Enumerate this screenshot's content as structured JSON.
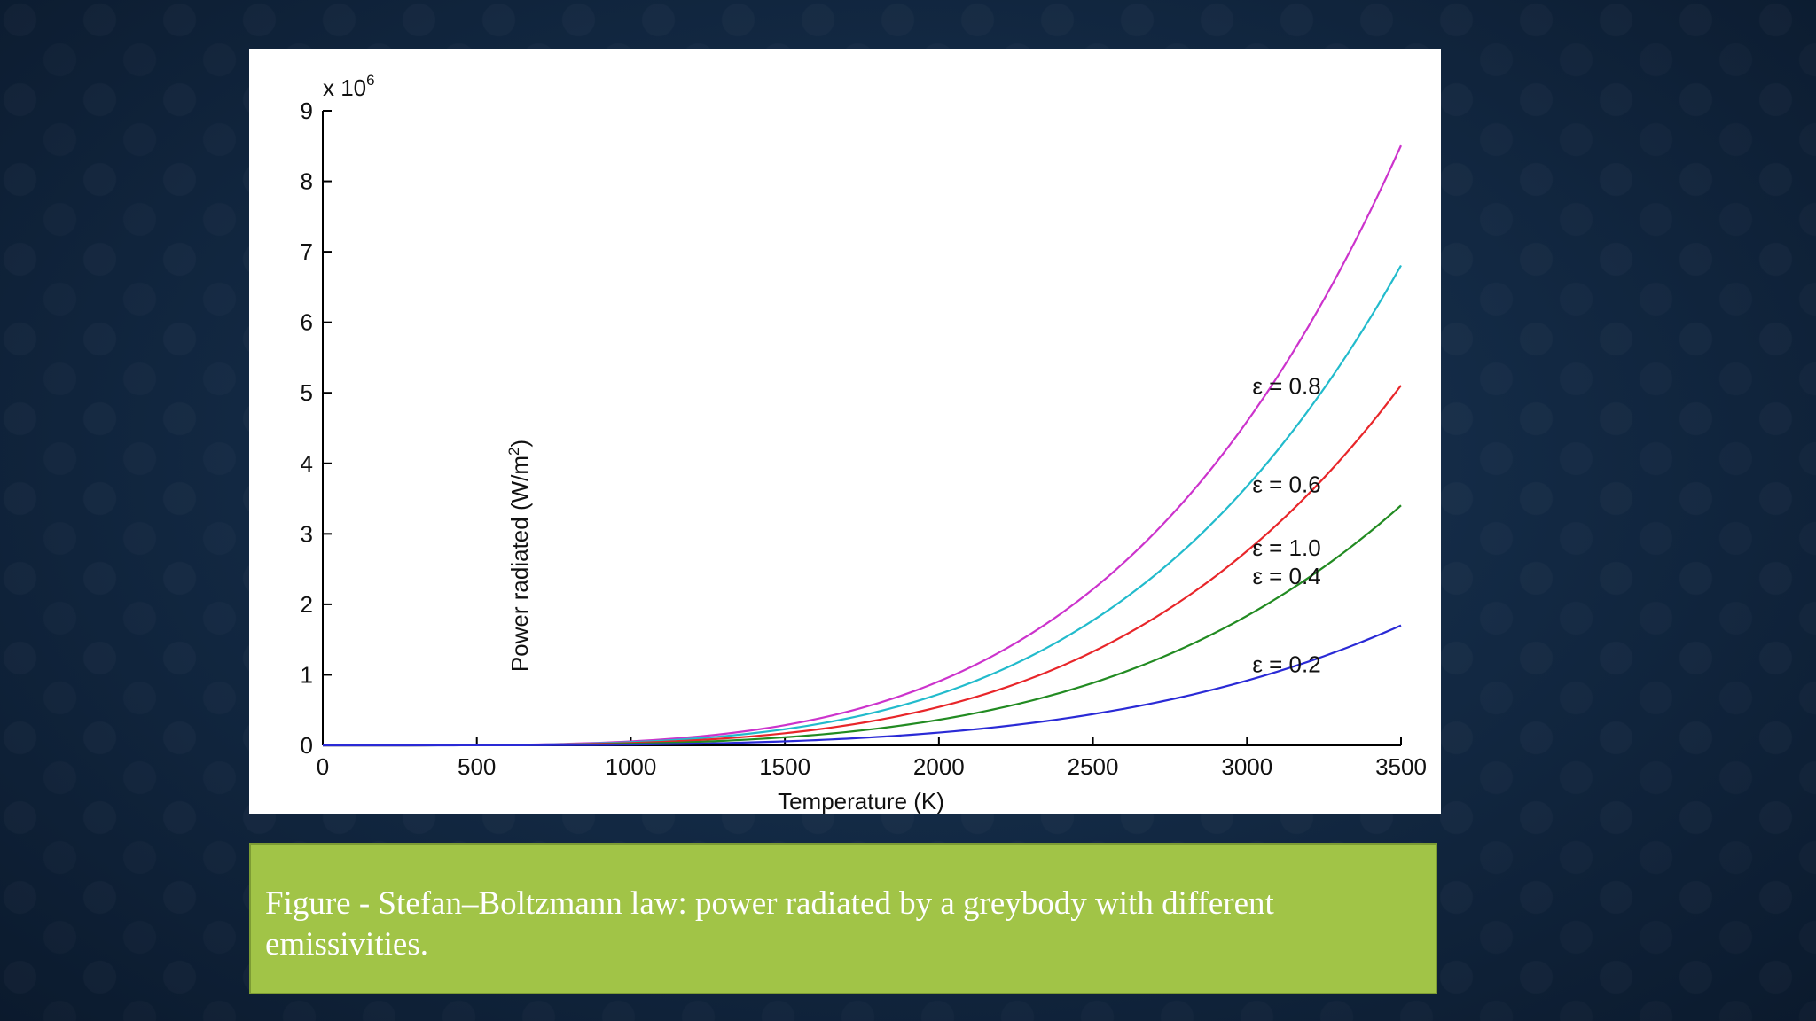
{
  "slide": {
    "caption": "Figure - Stefan–Boltzmann law: power radiated by a greybody with different emissivities."
  },
  "chart_data": {
    "type": "line",
    "title": "",
    "xlabel": "Temperature (K)",
    "ylabel_main": "Power radiated (W/m",
    "ylabel_sup": "2",
    "ylabel_end": ")",
    "y_multiplier_base": "x 10",
    "y_multiplier_exp": "6",
    "xlim": [
      0,
      3500
    ],
    "ylim": [
      0,
      9
    ],
    "x_ticks": [
      "0",
      "500",
      "1000",
      "1500",
      "2000",
      "2500",
      "3000",
      "3500"
    ],
    "y_ticks": [
      "0",
      "1",
      "2",
      "3",
      "4",
      "5",
      "6",
      "7",
      "8",
      "9"
    ],
    "grid": false,
    "x": [
      0,
      250,
      500,
      750,
      1000,
      1250,
      1500,
      1750,
      2000,
      2250,
      2500,
      2750,
      3000,
      3250,
      3500
    ],
    "series": [
      {
        "name": "ε = 1.0",
        "emissivity": 1.0,
        "color": "#cc33cc",
        "values": [
          0,
          0.0002,
          0.0035,
          0.0179,
          0.0567,
          0.1384,
          0.287,
          0.5318,
          0.9072,
          1.4532,
          2.2148,
          3.2427,
          4.5927,
          6.3265,
          8.5083
        ]
      },
      {
        "name": "ε = 0.8",
        "emissivity": 0.8,
        "color": "#22bbcc",
        "values": [
          0,
          0.0002,
          0.0028,
          0.0143,
          0.0454,
          0.1107,
          0.2296,
          0.4254,
          0.7258,
          1.1626,
          1.7718,
          2.5942,
          3.6742,
          5.0612,
          6.8066
        ]
      },
      {
        "name": "ε = 0.6",
        "emissivity": 0.6,
        "color": "#e8262a",
        "values": [
          0,
          0.0001,
          0.0021,
          0.0108,
          0.034,
          0.083,
          0.1722,
          0.3191,
          0.5443,
          0.8719,
          1.3289,
          1.9456,
          2.7556,
          3.7959,
          5.105
        ]
      },
      {
        "name": "ε = 0.4",
        "emissivity": 0.4,
        "color": "#228b22",
        "values": [
          0,
          0.0001,
          0.0014,
          0.0072,
          0.0227,
          0.0554,
          0.1148,
          0.2127,
          0.3629,
          0.5813,
          0.8859,
          1.2971,
          1.8371,
          2.5306,
          3.4033
        ]
      },
      {
        "name": "ε = 0.2",
        "emissivity": 0.2,
        "color": "#2a2ad6",
        "values": [
          0,
          4e-05,
          0.0007,
          0.0036,
          0.0113,
          0.0277,
          0.0574,
          0.1064,
          0.1814,
          0.2906,
          0.443,
          0.6485,
          0.9185,
          1.2653,
          1.7017
        ]
      }
    ]
  }
}
